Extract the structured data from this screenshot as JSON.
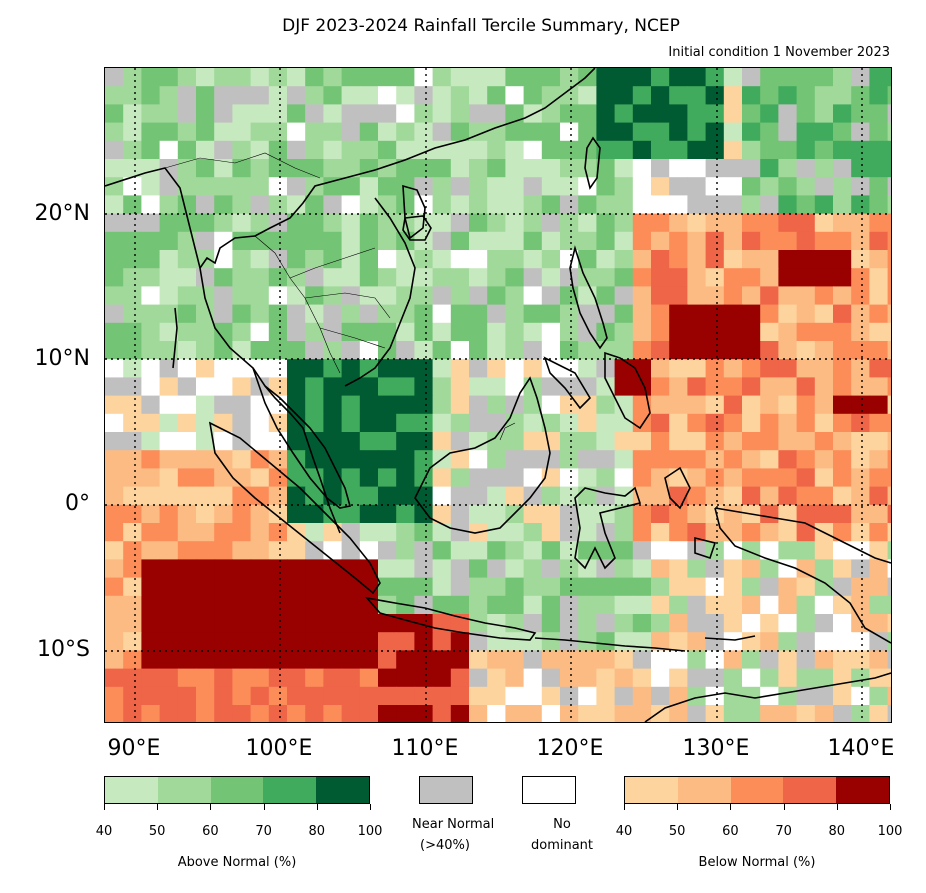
{
  "title": "DJF 2023-2024 Rainfall Tercile Summary, NCEP",
  "subtitle": "Initial condition 1 November 2023",
  "latitude_labels": [
    "20°N",
    "10°N",
    "0°",
    "10°S"
  ],
  "longitude_labels": [
    "90°E",
    "100°E",
    "110°E",
    "120°E",
    "130°E",
    "140°E"
  ],
  "legend": {
    "above_normal": {
      "label": "Above Normal (%)",
      "ticks": [
        "40",
        "50",
        "60",
        "70",
        "80",
        "100"
      ],
      "colors": [
        "#c7e9c0",
        "#a1d99b",
        "#74c476",
        "#41ab5d",
        "#005a32"
      ]
    },
    "near_normal": {
      "label_line1": "Near Normal",
      "label_line2": "(>40%)",
      "color": "#c0c0c0"
    },
    "no_dominant": {
      "label_line1": "No",
      "label_line2": "dominant",
      "color": "#ffffff"
    },
    "below_normal": {
      "label": "Below Normal (%)",
      "ticks": [
        "40",
        "50",
        "60",
        "70",
        "80",
        "100"
      ],
      "colors": [
        "#fdd49e",
        "#fdbb84",
        "#fc8d59",
        "#ef6548",
        "#990000"
      ]
    }
  }
}
